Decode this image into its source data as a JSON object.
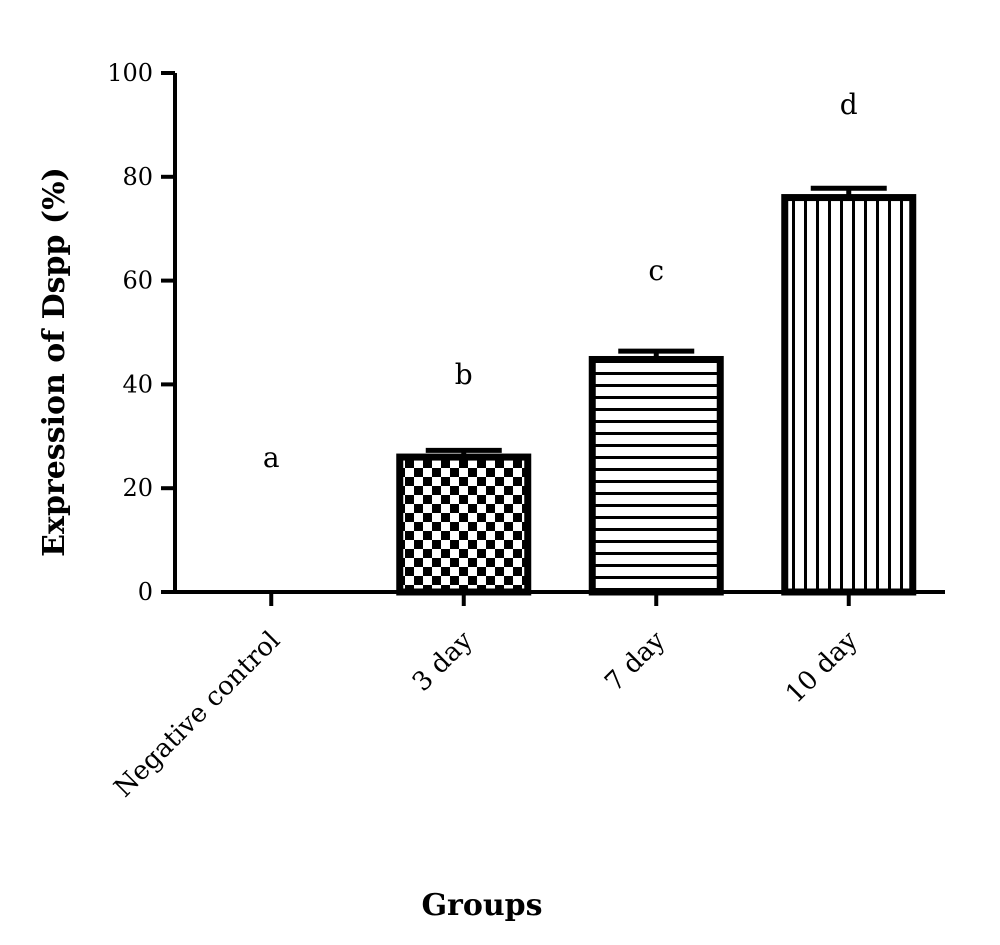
{
  "chart_data": {
    "type": "bar",
    "title": "",
    "xlabel": "Groups",
    "ylabel": "Expression of Dspp (%)",
    "ylim": [
      0,
      100
    ],
    "yticks": [
      0,
      20,
      40,
      60,
      80,
      100
    ],
    "categories": [
      "Negative control",
      "3 day",
      "7 day",
      "10 day"
    ],
    "values": [
      0,
      26,
      44.8,
      76
    ],
    "errors": [
      0,
      1.3,
      1.6,
      1.8
    ],
    "significance_labels": [
      "a",
      "b",
      "c",
      "d"
    ],
    "significance_y": [
      26,
      42,
      62,
      94
    ],
    "patterns": [
      "none",
      "checker",
      "horizontal-lines",
      "vertical-lines"
    ],
    "grid": false,
    "legend": "none",
    "colors": {
      "stroke": "#000000",
      "fill": "#ffffff"
    }
  }
}
